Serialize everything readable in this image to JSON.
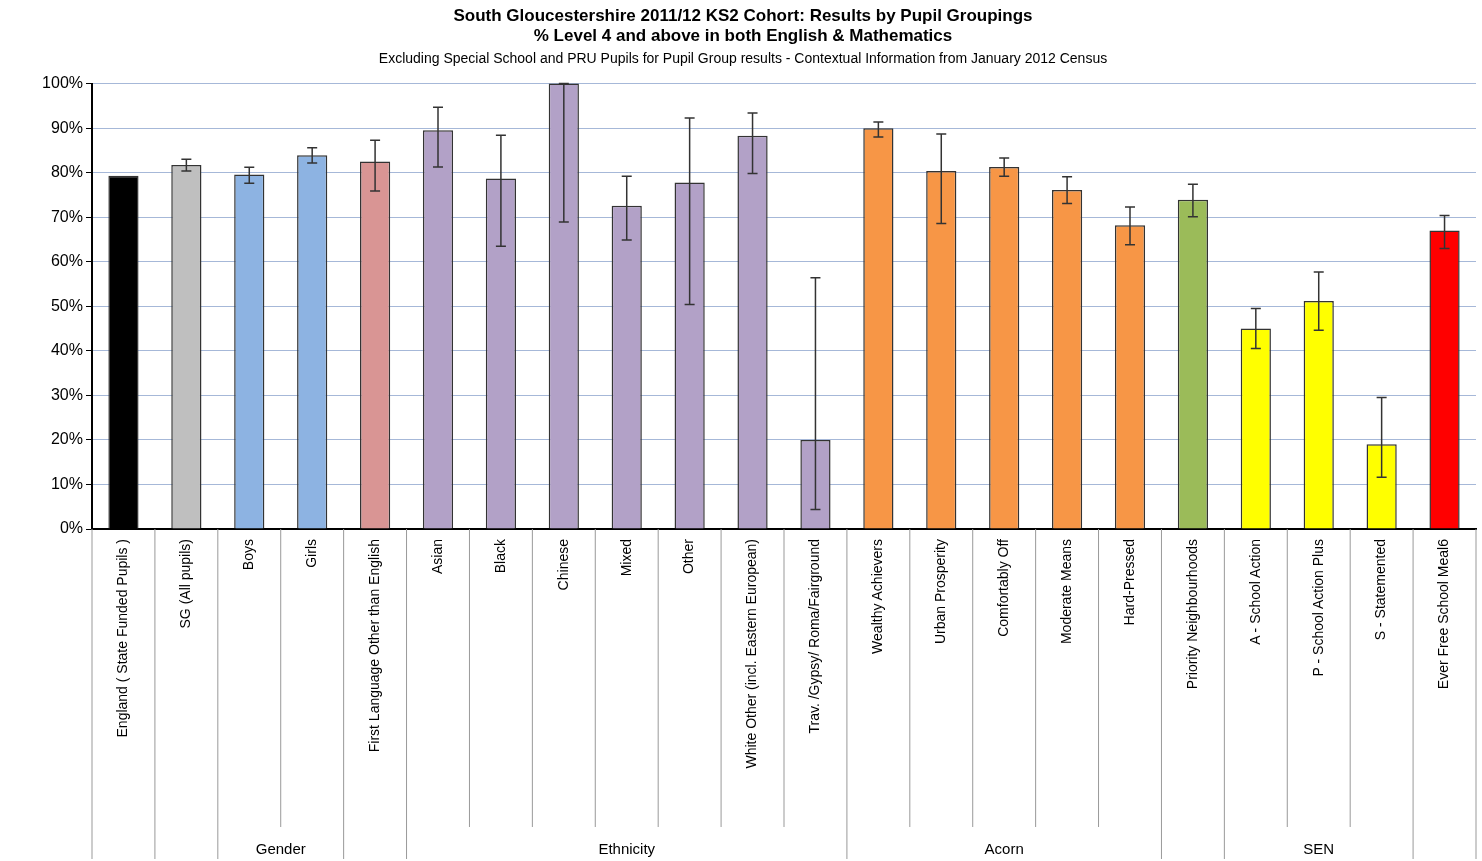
{
  "chart_data": {
    "type": "bar",
    "title": "South Gloucestershire 2011/12 KS2 Cohort: Results by Pupil Groupings\n% Level 4 and above in both English & Mathematics",
    "subtitle": "Excluding Special School and PRU Pupils for Pupil Group results - Contextual Information from January 2012 Census",
    "categories": [
      "England ( State Funded Pupils )",
      "SG (All pupils)",
      "Boys",
      "Girls",
      "First Language Other than English",
      "Asian",
      "Black",
      "Chinese",
      "Mixed",
      "Other",
      "White Other (incl. Eastern European)",
      "Trav. /Gypsy/ Roma/Fairground",
      "Wealthy Achievers",
      "Urban Prosperity",
      "Comfortably Off",
      "Moderate Means",
      "Hard-Pressed",
      "Priority Neighbourhoods",
      "A - School Action",
      "P - School Action Plus",
      "S - Statemented",
      "Ever Free School Meal6"
    ],
    "values": [
      79.3,
      81.7,
      79.6,
      83.9,
      82.5,
      89.5,
      78.7,
      100,
      72.6,
      77.8,
      88.3,
      20,
      90,
      80.4,
      81.3,
      76.1,
      68.2,
      73.9,
      45,
      51.2,
      19,
      67
    ],
    "colors": [
      "#000000",
      "#bfbfbf",
      "#8db3e2",
      "#8db3e2",
      "#d99594",
      "#b2a1c7",
      "#b2a1c7",
      "#b2a1c7",
      "#b2a1c7",
      "#b2a1c7",
      "#b2a1c7",
      "#b2a1c7",
      "#f79646",
      "#f79646",
      "#f79646",
      "#f79646",
      "#f79646",
      "#9bbb59",
      "#ffff00",
      "#ffff00",
      "#ffff00",
      "#ff0000"
    ],
    "errors": [
      null,
      [
        80.4,
        83
      ],
      [
        77.6,
        81.2
      ],
      [
        82.2,
        85.6
      ],
      [
        75.9,
        87.3
      ],
      [
        81.3,
        94.7
      ],
      [
        63.5,
        88.4
      ],
      [
        68.9,
        100
      ],
      [
        64.9,
        79.2
      ],
      [
        50.4,
        92.3
      ],
      [
        79.8,
        93.4
      ],
      [
        4.4,
        56.4
      ],
      [
        88,
        91.4
      ],
      [
        68.6,
        88.7
      ],
      [
        79.2,
        83.3
      ],
      [
        73.1,
        79.1
      ],
      [
        63.8,
        72.3
      ],
      [
        70.1,
        77.4
      ],
      [
        40.5,
        49.5
      ],
      [
        44.6,
        57.7
      ],
      [
        11.6,
        29.5
      ],
      [
        63,
        70.4
      ]
    ],
    "ylim": [
      0,
      100
    ],
    "yticks": [
      {
        "value": 0,
        "label": "0%"
      },
      {
        "value": 10,
        "label": "10%"
      },
      {
        "value": 20,
        "label": "20%"
      },
      {
        "value": 30,
        "label": "30%"
      },
      {
        "value": 40,
        "label": "40%"
      },
      {
        "value": 50,
        "label": "50%"
      },
      {
        "value": 60,
        "label": "60%"
      },
      {
        "value": 70,
        "label": "70%"
      },
      {
        "value": 80,
        "label": "80%"
      },
      {
        "value": 90,
        "label": "90%"
      },
      {
        "value": 100,
        "label": "100%"
      }
    ],
    "grid": "y",
    "annotations": [
      "Gender",
      "Ethnicity",
      "Acorn",
      "SEN"
    ]
  }
}
